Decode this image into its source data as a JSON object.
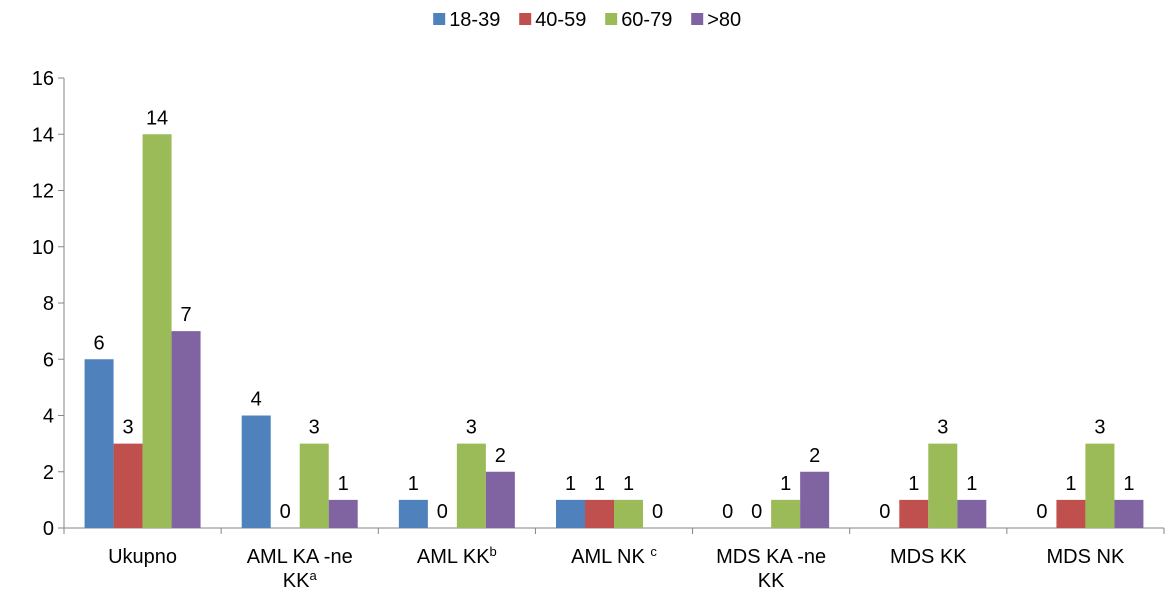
{
  "chart_data": {
    "type": "bar",
    "categories": [
      {
        "lines": [
          "Ukupno"
        ],
        "sup": ""
      },
      {
        "lines": [
          "AML KA -ne",
          "KK"
        ],
        "sup": "a"
      },
      {
        "lines": [
          "AML KK"
        ],
        "sup": "b"
      },
      {
        "lines": [
          "AML NK "
        ],
        "sup": "c"
      },
      {
        "lines": [
          "MDS KA -ne",
          "KK"
        ],
        "sup": ""
      },
      {
        "lines": [
          "MDS KK"
        ],
        "sup": ""
      },
      {
        "lines": [
          "MDS NK"
        ],
        "sup": ""
      }
    ],
    "series": [
      {
        "name": "18-39",
        "color": "#4F81BD",
        "values": [
          6,
          4,
          1,
          1,
          0,
          0,
          0
        ]
      },
      {
        "name": "40-59",
        "color": "#C0504D",
        "values": [
          3,
          0,
          0,
          1,
          0,
          1,
          1
        ]
      },
      {
        "name": "60-79",
        "color": "#9BBB59",
        "values": [
          14,
          3,
          3,
          1,
          1,
          3,
          3
        ]
      },
      {
        "name": ">80",
        "color": "#8064A2",
        "values": [
          7,
          1,
          2,
          0,
          2,
          1,
          1
        ]
      }
    ],
    "ylim": [
      0,
      16
    ],
    "yticks": [
      0,
      2,
      4,
      6,
      8,
      10,
      12,
      14,
      16
    ],
    "legend_position": "top-center",
    "grid": false,
    "title": "",
    "xlabel": "",
    "ylabel": ""
  }
}
